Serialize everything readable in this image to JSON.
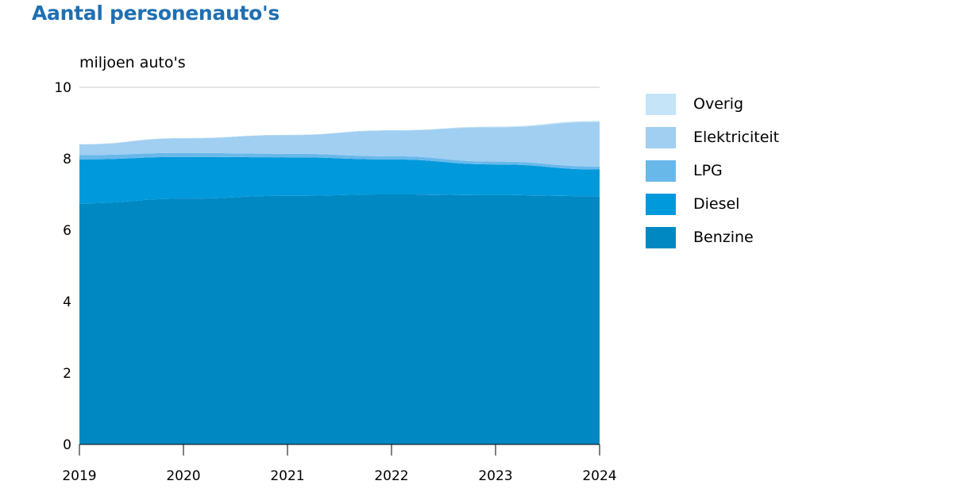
{
  "title": "Aantal personenauto's",
  "chart_data": {
    "type": "area",
    "stacked": true,
    "title": "Aantal personenauto's",
    "ylabel": "miljoen auto's",
    "xlabel": "",
    "x": [
      "2019",
      "2020",
      "2021",
      "2022",
      "2023",
      "2024"
    ],
    "ylim": [
      0,
      10
    ],
    "yticks": [
      0,
      2,
      4,
      6,
      8,
      10
    ],
    "grid": "top-line-only",
    "legend_position": "right",
    "series": [
      {
        "name": "Benzine",
        "color": "#0088c3",
        "values": [
          6.75,
          6.88,
          6.96,
          7.0,
          6.98,
          6.95
        ]
      },
      {
        "name": "Diesel",
        "color": "#0099dc",
        "values": [
          1.23,
          1.17,
          1.08,
          0.98,
          0.86,
          0.75
        ]
      },
      {
        "name": "LPG",
        "color": "#69b8ea",
        "values": [
          0.12,
          0.11,
          0.1,
          0.09,
          0.08,
          0.08
        ]
      },
      {
        "name": "Elektriciteit",
        "color": "#a0cff2",
        "values": [
          0.3,
          0.41,
          0.52,
          0.72,
          0.96,
          1.25
        ]
      },
      {
        "name": "Overig",
        "color": "#c6e4f8",
        "values": [
          0.01,
          0.01,
          0.01,
          0.01,
          0.02,
          0.03
        ]
      }
    ]
  }
}
